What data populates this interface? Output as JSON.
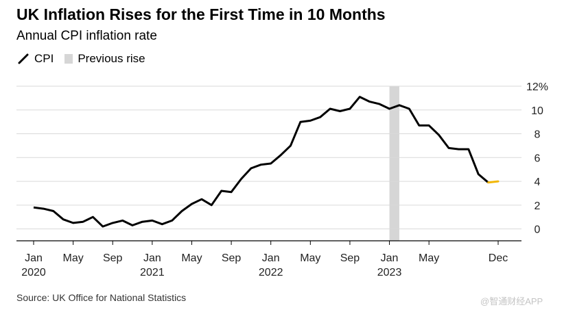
{
  "header": {
    "title": "UK Inflation Rises for the First Time in 10 Months",
    "subtitle": "Annual CPI inflation rate"
  },
  "legend": {
    "cpi_label": "CPI",
    "previous_rise_label": "Previous rise"
  },
  "footer": {
    "source": "Source: UK Office for National Statistics",
    "watermark": "@智通财经APP"
  },
  "colors": {
    "line": "#000000",
    "latest": "#f2b705",
    "shade": "#d6d6d6",
    "grid": "#d9d9d9"
  },
  "chart_data": {
    "type": "line",
    "title": "UK Inflation Rises for the First Time in 10 Months",
    "subtitle": "Annual CPI inflation rate",
    "x": [
      "2020-01",
      "2020-02",
      "2020-03",
      "2020-04",
      "2020-05",
      "2020-06",
      "2020-07",
      "2020-08",
      "2020-09",
      "2020-10",
      "2020-11",
      "2020-12",
      "2021-01",
      "2021-02",
      "2021-03",
      "2021-04",
      "2021-05",
      "2021-06",
      "2021-07",
      "2021-08",
      "2021-09",
      "2021-10",
      "2021-11",
      "2021-12",
      "2022-01",
      "2022-02",
      "2022-03",
      "2022-04",
      "2022-05",
      "2022-06",
      "2022-07",
      "2022-08",
      "2022-09",
      "2022-10",
      "2022-11",
      "2022-12",
      "2023-01",
      "2023-02",
      "2023-03",
      "2023-04",
      "2023-05",
      "2023-06",
      "2023-07",
      "2023-08",
      "2023-09",
      "2023-10",
      "2023-11",
      "2023-12"
    ],
    "series": [
      {
        "name": "CPI",
        "values": [
          1.8,
          1.7,
          1.5,
          0.8,
          0.5,
          0.6,
          1.0,
          0.2,
          0.5,
          0.7,
          0.3,
          0.6,
          0.7,
          0.4,
          0.7,
          1.5,
          2.1,
          2.5,
          2.0,
          3.2,
          3.1,
          4.2,
          5.1,
          5.4,
          5.5,
          6.2,
          7.0,
          9.0,
          9.1,
          9.4,
          10.1,
          9.9,
          10.1,
          11.1,
          10.7,
          10.5,
          10.1,
          10.4,
          10.1,
          8.7,
          8.7,
          7.9,
          6.8,
          6.7,
          6.7,
          4.6,
          3.9,
          4.0
        ]
      }
    ],
    "latest_segment": {
      "from": "2023-11",
      "to": "2023-12"
    },
    "shaded_period": {
      "label": "Previous rise",
      "from": "2023-01",
      "to": "2023-02"
    },
    "ylim": [
      -1,
      12
    ],
    "yticks": [
      0,
      2,
      4,
      6,
      8,
      10,
      12
    ],
    "ytick_labels": [
      "0",
      "2",
      "4",
      "6",
      "8",
      "10",
      "12%"
    ],
    "xticks": [
      {
        "at": "2020-01",
        "label": "Jan",
        "year": "2020"
      },
      {
        "at": "2020-05",
        "label": "May",
        "year": ""
      },
      {
        "at": "2020-09",
        "label": "Sep",
        "year": ""
      },
      {
        "at": "2021-01",
        "label": "Jan",
        "year": "2021"
      },
      {
        "at": "2021-05",
        "label": "May",
        "year": ""
      },
      {
        "at": "2021-09",
        "label": "Sep",
        "year": ""
      },
      {
        "at": "2022-01",
        "label": "Jan",
        "year": "2022"
      },
      {
        "at": "2022-05",
        "label": "May",
        "year": ""
      },
      {
        "at": "2022-09",
        "label": "Sep",
        "year": ""
      },
      {
        "at": "2023-01",
        "label": "Jan",
        "year": "2023"
      },
      {
        "at": "2023-05",
        "label": "May",
        "year": ""
      },
      {
        "at": "2023-12",
        "label": "Dec",
        "year": ""
      }
    ],
    "grid": true,
    "yaxis_side": "right",
    "legend_position": "top-left"
  }
}
